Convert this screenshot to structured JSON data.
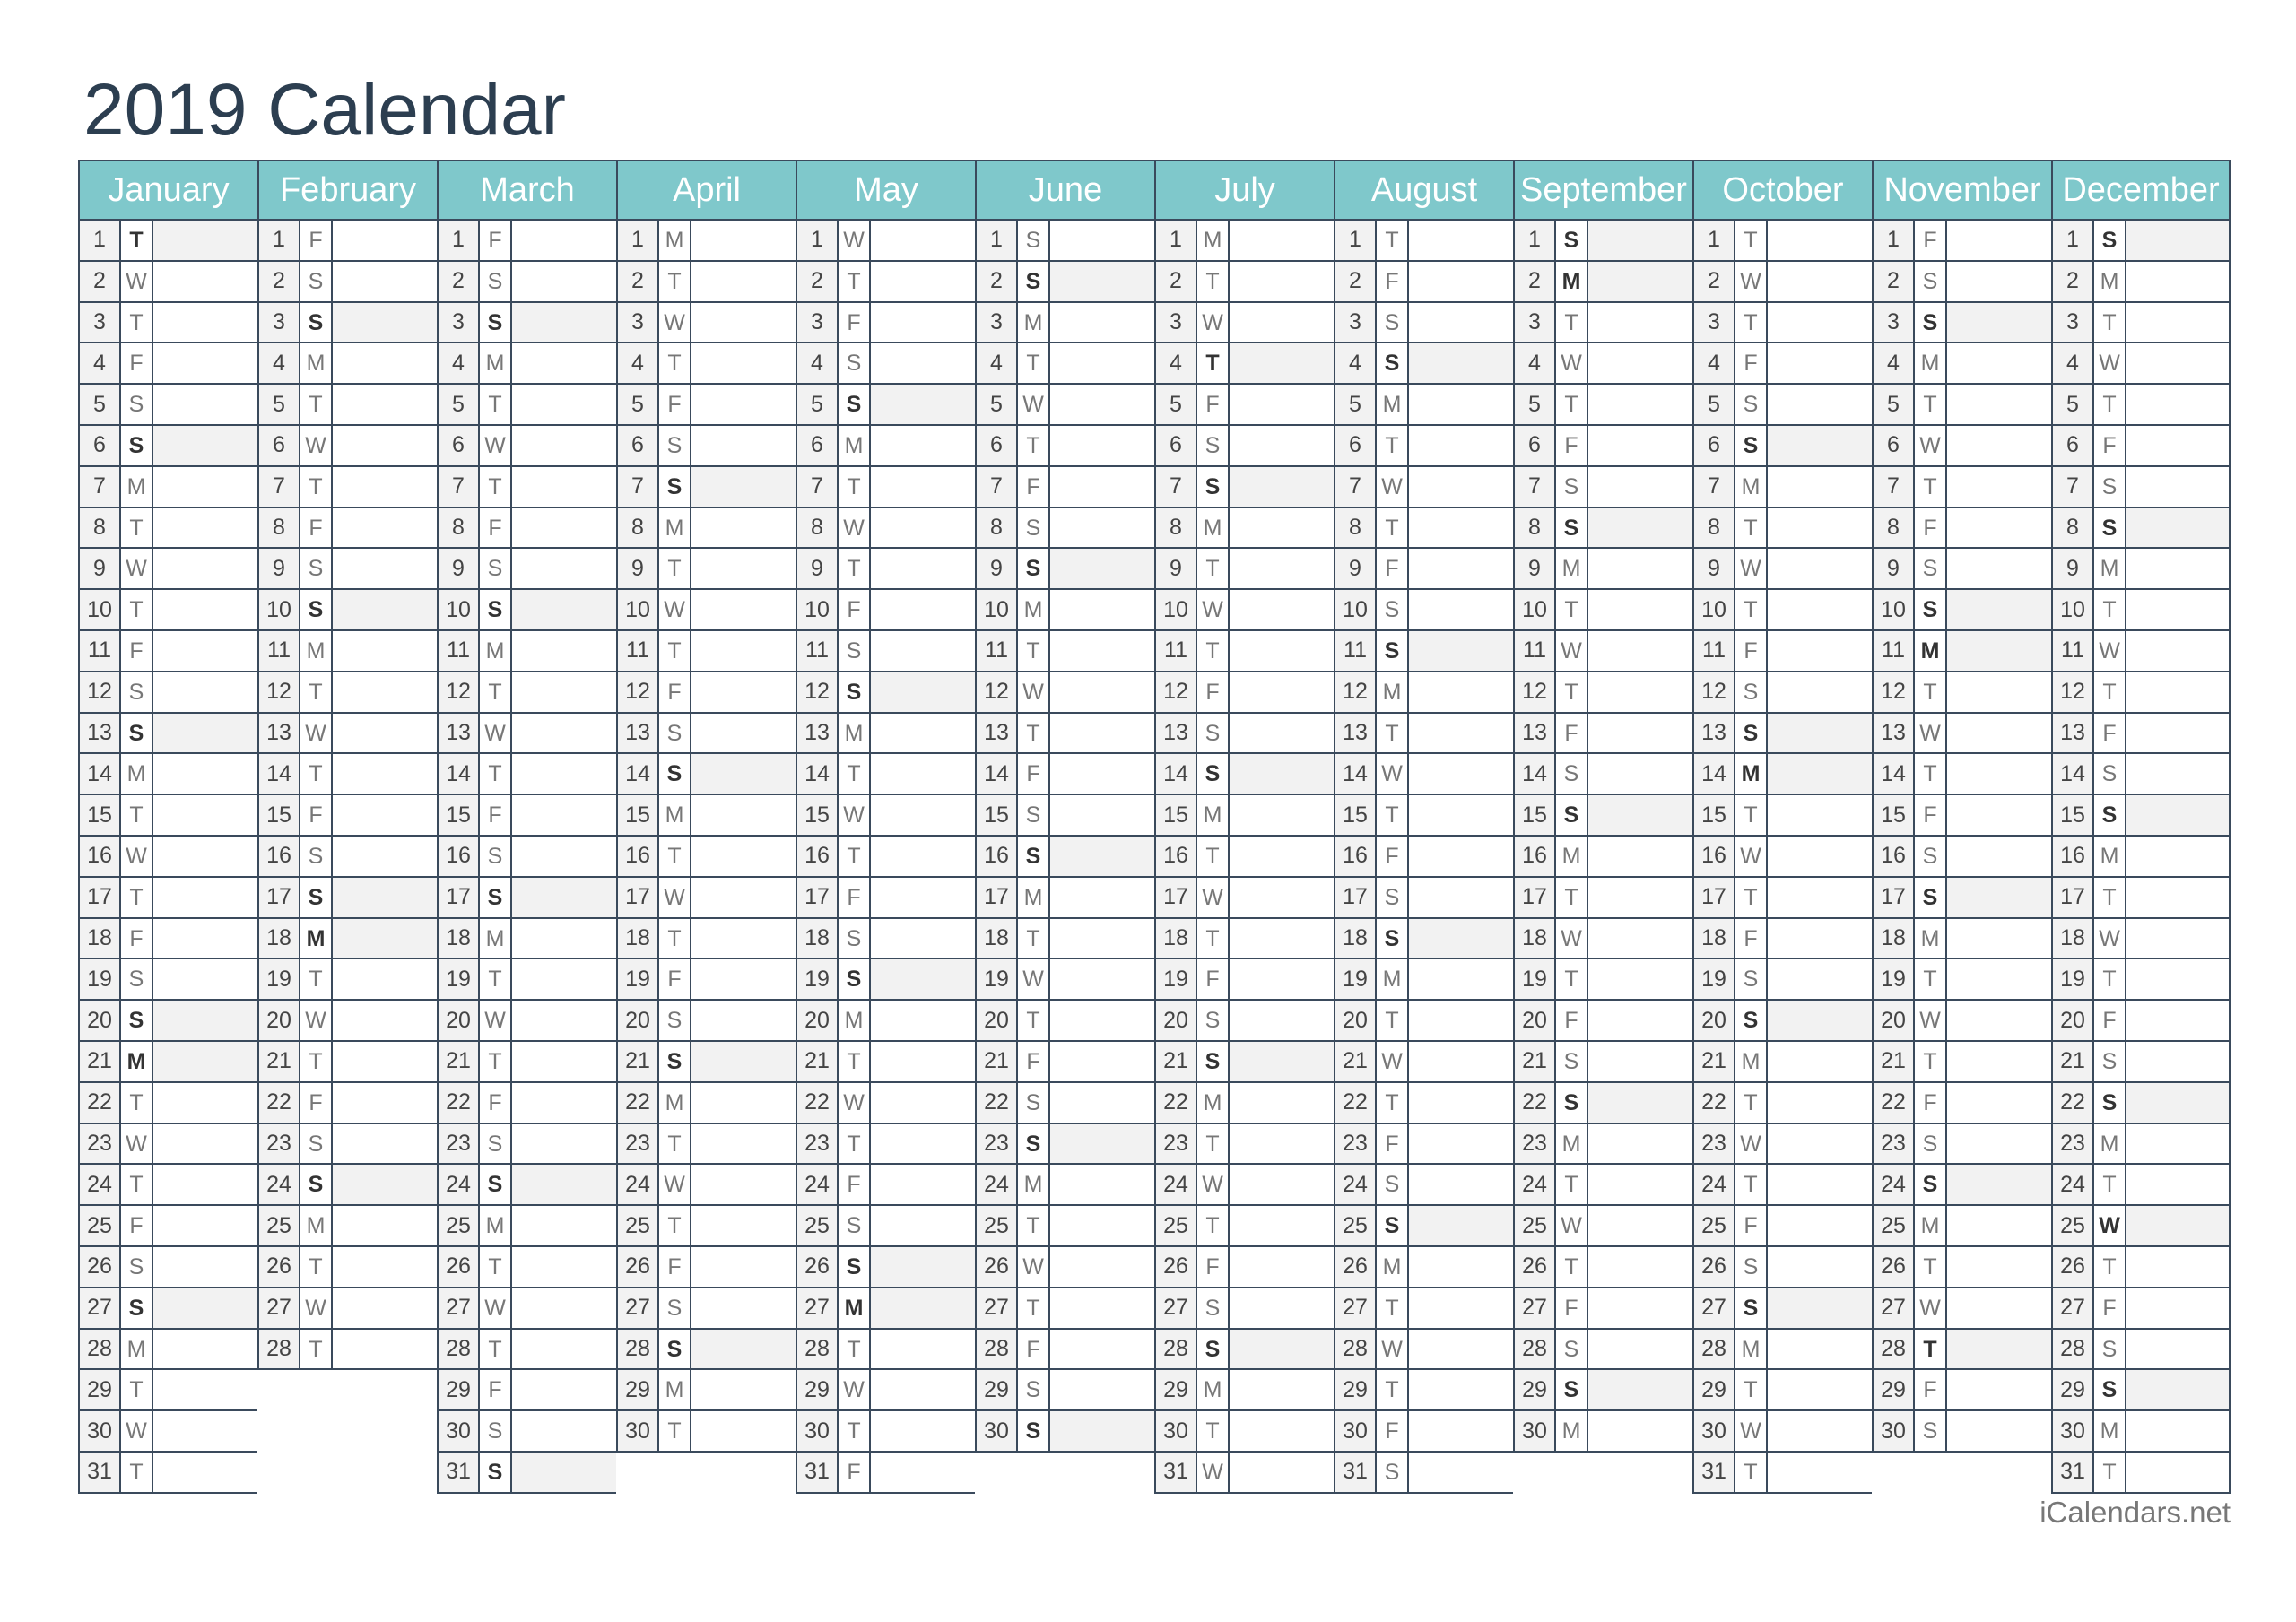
{
  "title": "2019 Calendar",
  "footer": "iCalendars.net",
  "colors": {
    "header": "#7fc8cb",
    "title": "#2c3e50",
    "shade": "#f2f2f2",
    "grid": "#3a4a5c"
  },
  "months": [
    {
      "name": "January",
      "weekdays": "TWTFSSMTWTFSSMTWTFSSMTWTFSSMTWT",
      "highlighted": [
        1,
        6,
        13,
        20,
        21,
        27
      ]
    },
    {
      "name": "February",
      "weekdays": "FSSMTWTFSSMTWTFSSMTWTFSSMTWT",
      "highlighted": [
        3,
        10,
        17,
        18,
        24
      ]
    },
    {
      "name": "March",
      "weekdays": "FSSMTWTFSSMTWTFSSMTWTFSSMTWTFSS",
      "highlighted": [
        3,
        10,
        17,
        24,
        31
      ]
    },
    {
      "name": "April",
      "weekdays": "MTWTFSSMTWTFSSMTWTFSSMTWTFSSMT",
      "highlighted": [
        7,
        14,
        21,
        28
      ]
    },
    {
      "name": "May",
      "weekdays": "WTFSSMTWTFSSMTWTFSSMTWTFSSMTWTF",
      "highlighted": [
        5,
        12,
        19,
        26,
        27
      ]
    },
    {
      "name": "June",
      "weekdays": "SSMTWTFSSMTWTFSSMTWTFSSMTWTFSS",
      "highlighted": [
        2,
        9,
        16,
        23,
        30
      ]
    },
    {
      "name": "July",
      "weekdays": "MTWTFSSMTWTFSSMTWTFSSMTWTFSSMTW",
      "highlighted": [
        4,
        7,
        14,
        21,
        28
      ]
    },
    {
      "name": "August",
      "weekdays": "TFSSMTWTFSSMTWTFSSMTWTFSSMTWTFS",
      "highlighted": [
        4,
        11,
        18,
        25
      ]
    },
    {
      "name": "September",
      "weekdays": "SMTWTFSSMTWTFSSMTWTFSSMTWTFSSM",
      "highlighted": [
        1,
        2,
        8,
        15,
        22,
        29
      ]
    },
    {
      "name": "October",
      "weekdays": "TWTFSSMTWTFSSMTWTFSSMTWTFSSMTWT",
      "highlighted": [
        6,
        13,
        14,
        20,
        27
      ]
    },
    {
      "name": "November",
      "weekdays": "FSSMTWTFSSMTWTFSSMTWTFSSMTWTFS",
      "highlighted": [
        3,
        10,
        11,
        17,
        24,
        28
      ]
    },
    {
      "name": "December",
      "weekdays": "SMTWTFSSMTWTFSSMTWTFSSMTWTFSSMT",
      "highlighted": [
        1,
        8,
        15,
        22,
        25,
        29
      ]
    }
  ]
}
